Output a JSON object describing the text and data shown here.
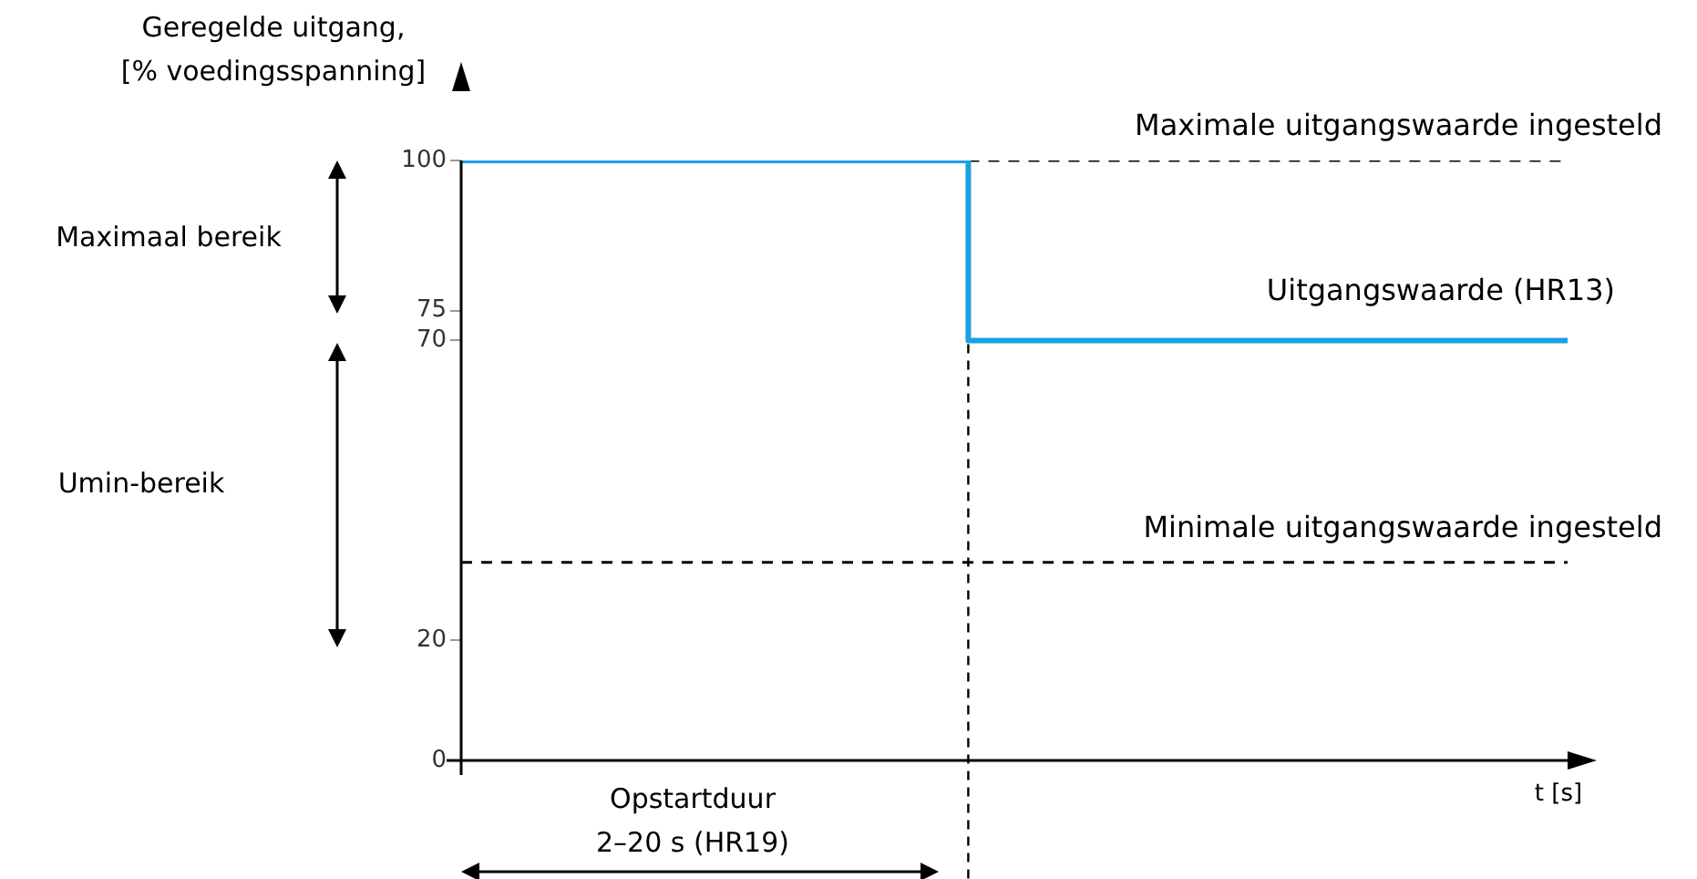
{
  "chart_data": {
    "type": "line",
    "ylabel": "Geregelde uitgang,\n[% voedingsspanning]",
    "xlabel": "t [s]",
    "categories": [
      null,
      null,
      null,
      null,
      null,
      null,
      null,
      null,
      null,
      null,
      null,
      null,
      null,
      null,
      null,
      null,
      null,
      null,
      null,
      null,
      null,
      null,
      null,
      null,
      null
    ],
    "ylim": [
      0,
      100
    ],
    "yticks": [
      0,
      20,
      70,
      75,
      100
    ],
    "legend": false,
    "marker": "none",
    "series": [
      {
        "name": "Uitgangswaarde (HR13)",
        "type": "step",
        "color": "#1ba1e2",
        "values": [
          100,
          100,
          100,
          100,
          100,
          100,
          100,
          100,
          100,
          100,
          100,
          70,
          70,
          70,
          70,
          70,
          70,
          70,
          70,
          70,
          70,
          70,
          70,
          70,
          70
        ],
        "line_style": "solid"
      },
      {
        "name": "Maximale uitgangswaarde ingesteld",
        "color": "#000000",
        "values": [
          null,
          null,
          null,
          null,
          null,
          null,
          null,
          null,
          null,
          null,
          null,
          100,
          100,
          100,
          100,
          100,
          100,
          100,
          100,
          100,
          100,
          100,
          100,
          100,
          100
        ],
        "line_style": "dashed"
      },
      {
        "name": "Minimale uitgangswaarde ingesteld",
        "color": "#000000",
        "values": [
          33,
          33,
          33,
          33,
          33,
          33,
          33,
          33,
          33,
          33,
          33,
          33,
          33,
          33,
          33,
          33,
          33,
          33,
          33,
          33,
          33,
          33,
          33,
          33,
          33
        ],
        "line_style": "dashed"
      }
    ],
    "annotations": [
      "Maximaal bereik",
      "Umin-bereik",
      "Opstartduur\n2–20 s (HR19)"
    ]
  }
}
